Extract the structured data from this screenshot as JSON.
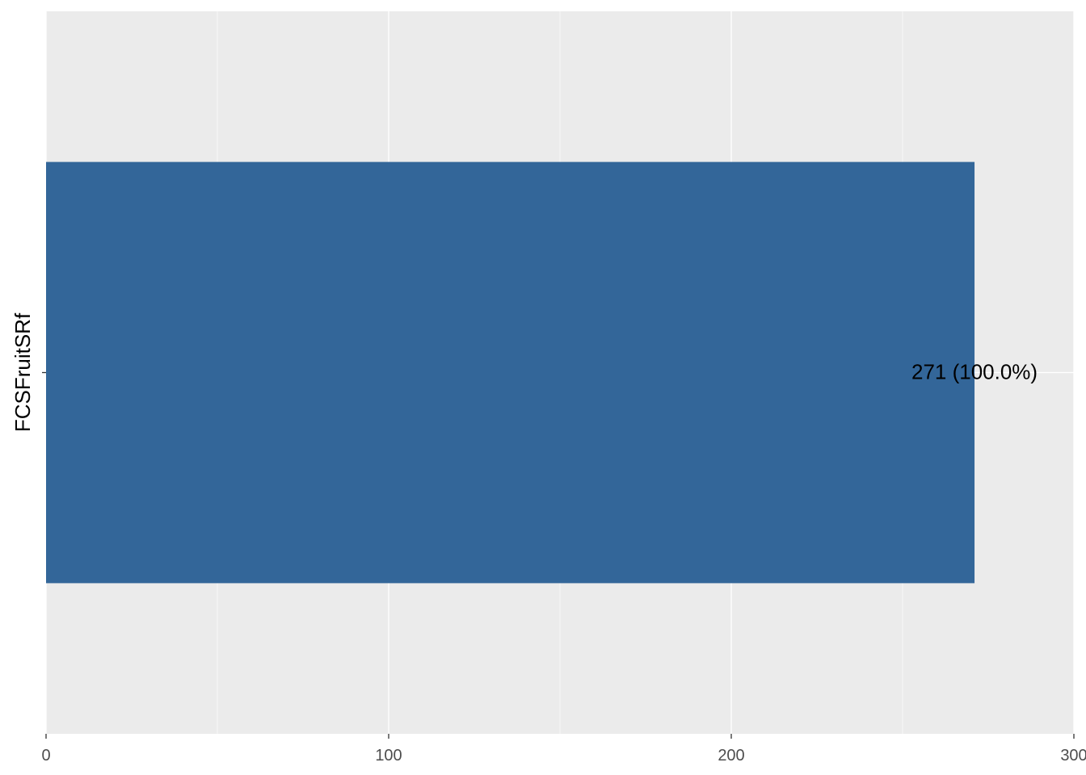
{
  "chart_data": {
    "type": "bar",
    "orientation": "horizontal",
    "categories": [
      "FCSFruitSRf"
    ],
    "values": [
      271
    ],
    "data_labels": [
      "271 (100.0%)"
    ],
    "xlim": [
      0,
      300
    ],
    "x_ticks": [
      0,
      100,
      200,
      300
    ],
    "x_tick_labels": [
      "0",
      "100",
      "200",
      "300"
    ],
    "grid": true,
    "bar_color": "#336699",
    "panel_background": "#EBEBEB"
  }
}
